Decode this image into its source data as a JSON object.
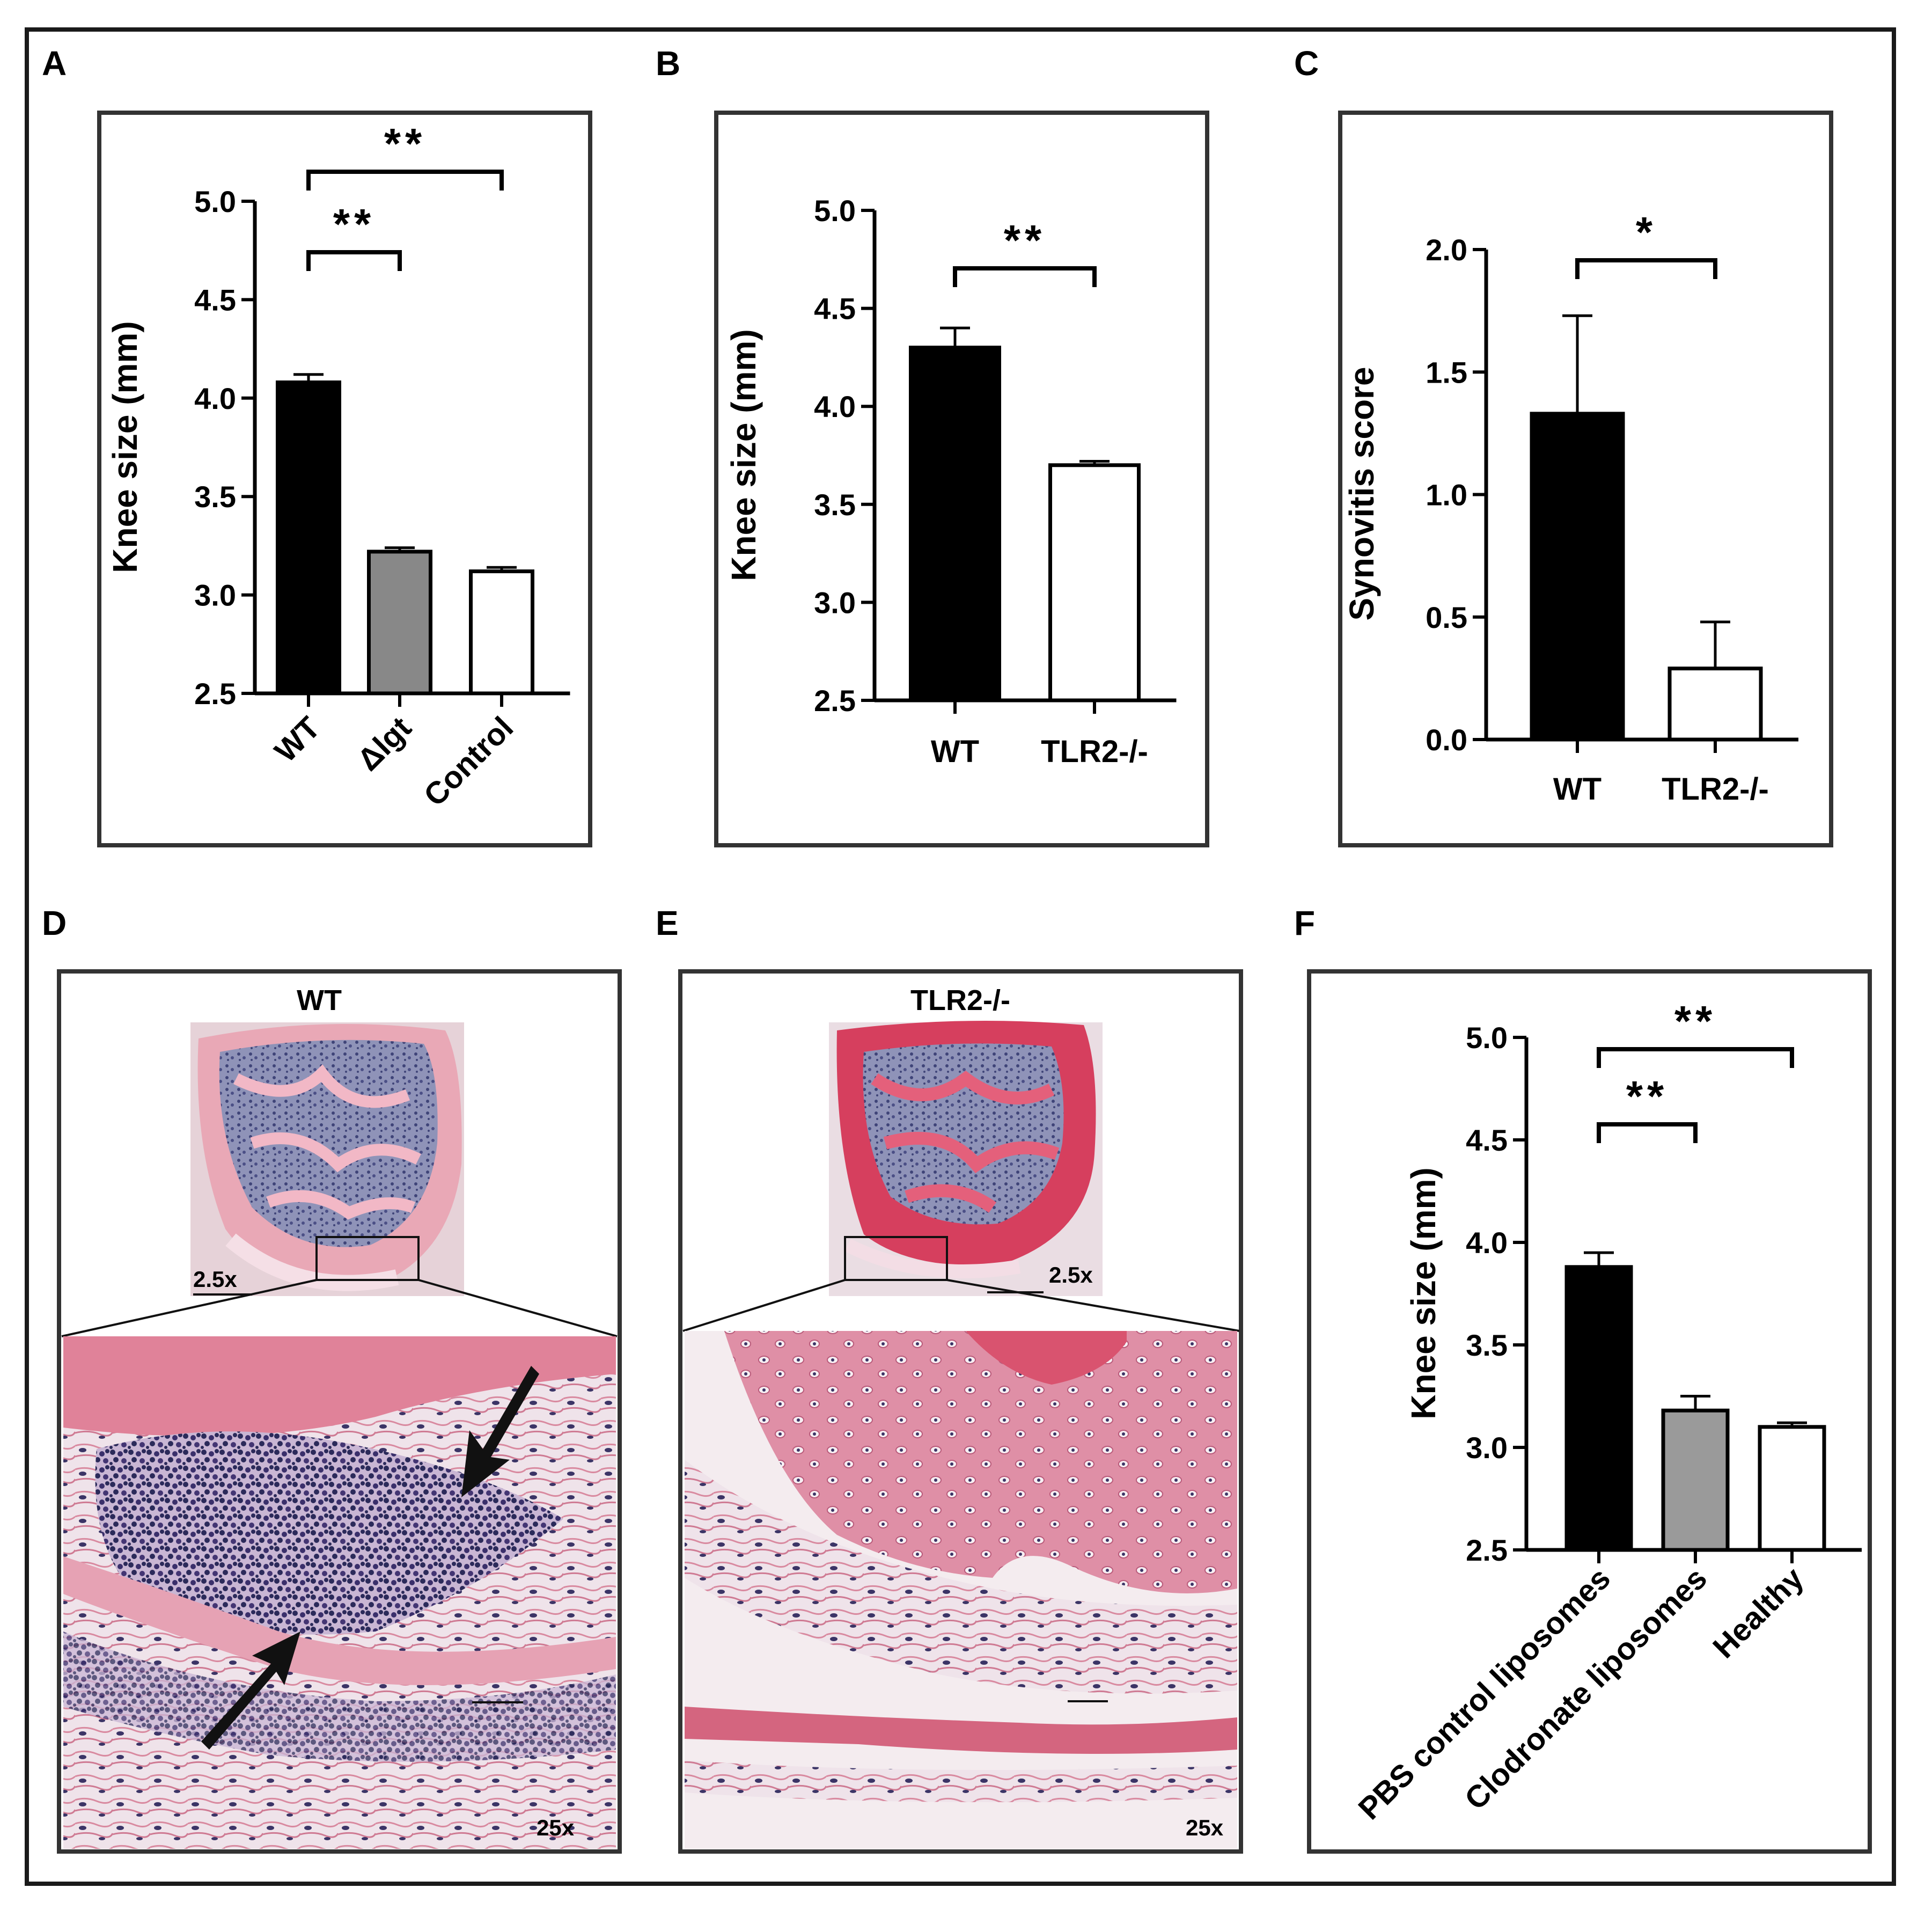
{
  "panel_labels": {
    "A": "A",
    "B": "B",
    "C": "C",
    "D": "D",
    "E": "E",
    "F": "F"
  },
  "colors": {
    "black_bar": "#000000",
    "gray_bar": "#888888",
    "light_gray_bar": "#9a9a9a",
    "white_bar": "#ffffff",
    "tissue_pink": "#e07d8e",
    "nuclei_purple": "#2b2a5a"
  },
  "chart_data": [
    {
      "panel": "A",
      "type": "bar",
      "categories": [
        "WT",
        "Δlgt",
        "Control"
      ],
      "values": [
        4.08,
        3.22,
        3.12
      ],
      "errors": [
        0.04,
        0.02,
        0.02
      ],
      "fills": [
        "#000000",
        "#888888",
        "#ffffff"
      ],
      "ylabel": "Knee size (mm)",
      "ylim": [
        2.5,
        5.0
      ],
      "yticks": [
        2.5,
        3.0,
        3.5,
        4.0,
        4.5,
        5.0
      ],
      "ytick_labels": [
        "2.5",
        "3.0",
        "3.5",
        "4.0",
        "4.5",
        "5.0"
      ],
      "significance": [
        {
          "from": 0,
          "to": 1,
          "label": "**"
        },
        {
          "from": 0,
          "to": 2,
          "label": "**"
        }
      ]
    },
    {
      "panel": "B",
      "type": "bar",
      "categories": [
        "WT",
        "TLR2-/-"
      ],
      "values": [
        4.3,
        3.7
      ],
      "errors": [
        0.1,
        0.02
      ],
      "fills": [
        "#000000",
        "#ffffff"
      ],
      "ylabel": "Knee size (mm)",
      "ylim": [
        2.5,
        5.0
      ],
      "yticks": [
        2.5,
        3.0,
        3.5,
        4.0,
        4.5,
        5.0
      ],
      "ytick_labels": [
        "2.5",
        "3.0",
        "3.5",
        "4.0",
        "4.5",
        "5.0"
      ],
      "significance": [
        {
          "from": 0,
          "to": 1,
          "label": "**"
        }
      ]
    },
    {
      "panel": "C",
      "type": "bar",
      "categories": [
        "WT",
        "TLR2-/-"
      ],
      "values": [
        1.33,
        0.29
      ],
      "errors": [
        0.4,
        0.19
      ],
      "fills": [
        "#000000",
        "#ffffff"
      ],
      "ylabel": "Synovitis  score",
      "ylim": [
        0.0,
        2.0
      ],
      "yticks": [
        0.0,
        0.5,
        1.0,
        1.5,
        2.0
      ],
      "ytick_labels": [
        "0.0",
        "0.5",
        "1.0",
        "1.5",
        "2.0"
      ],
      "significance": [
        {
          "from": 0,
          "to": 1,
          "label": "*"
        }
      ]
    },
    {
      "panel": "F",
      "type": "bar",
      "categories": [
        "PBS control liposomes",
        "Clodronate liposomes",
        "Healthy"
      ],
      "values": [
        3.88,
        3.18,
        3.1
      ],
      "errors": [
        0.07,
        0.07,
        0.02
      ],
      "fills": [
        "#000000",
        "#9a9a9a",
        "#ffffff"
      ],
      "ylabel": "Knee size (mm)",
      "ylim": [
        2.5,
        5.0
      ],
      "yticks": [
        2.5,
        3.0,
        3.5,
        4.0,
        4.5,
        5.0
      ],
      "ytick_labels": [
        "2.5",
        "3.0",
        "3.5",
        "4.0",
        "4.5",
        "5.0"
      ],
      "significance": [
        {
          "from": 0,
          "to": 1,
          "label": "**"
        },
        {
          "from": 0,
          "to": 2,
          "label": "**"
        }
      ]
    }
  ],
  "micrographs": {
    "D": {
      "title": "WT",
      "low_mag": "2.5x",
      "high_mag": "25x"
    },
    "E": {
      "title": "TLR2-/-",
      "low_mag": "2.5x",
      "high_mag": "25x"
    }
  }
}
